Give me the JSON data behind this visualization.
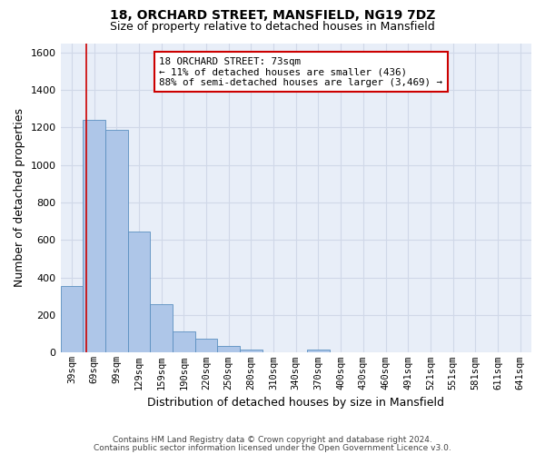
{
  "title_line1": "18, ORCHARD STREET, MANSFIELD, NG19 7DZ",
  "title_line2": "Size of property relative to detached houses in Mansfield",
  "xlabel": "Distribution of detached houses by size in Mansfield",
  "ylabel": "Number of detached properties",
  "footer_line1": "Contains HM Land Registry data © Crown copyright and database right 2024.",
  "footer_line2": "Contains public sector information licensed under the Open Government Licence v3.0.",
  "bar_labels": [
    "39sqm",
    "69sqm",
    "99sqm",
    "129sqm",
    "159sqm",
    "190sqm",
    "220sqm",
    "250sqm",
    "280sqm",
    "310sqm",
    "340sqm",
    "370sqm",
    "400sqm",
    "430sqm",
    "460sqm",
    "491sqm",
    "521sqm",
    "551sqm",
    "581sqm",
    "611sqm",
    "641sqm"
  ],
  "bar_values": [
    355,
    1240,
    1190,
    645,
    260,
    115,
    75,
    38,
    15,
    0,
    0,
    18,
    0,
    0,
    0,
    0,
    0,
    0,
    0,
    0,
    0
  ],
  "bar_color": "#aec6e8",
  "bar_edge_color": "#5a8fc0",
  "ylim": [
    0,
    1650
  ],
  "yticks": [
    0,
    200,
    400,
    600,
    800,
    1000,
    1200,
    1400,
    1600
  ],
  "property_label": "18 ORCHARD STREET: 73sqm",
  "annotation_line1": "← 11% of detached houses are smaller (436)",
  "annotation_line2": "88% of semi-detached houses are larger (3,469) →",
  "vline_x": 1.133,
  "vline_color": "#cc0000",
  "box_edge_color": "#cc0000",
  "grid_color": "#d0d8e8",
  "background_color": "#ffffff",
  "plot_bg_color": "#e8eef8"
}
